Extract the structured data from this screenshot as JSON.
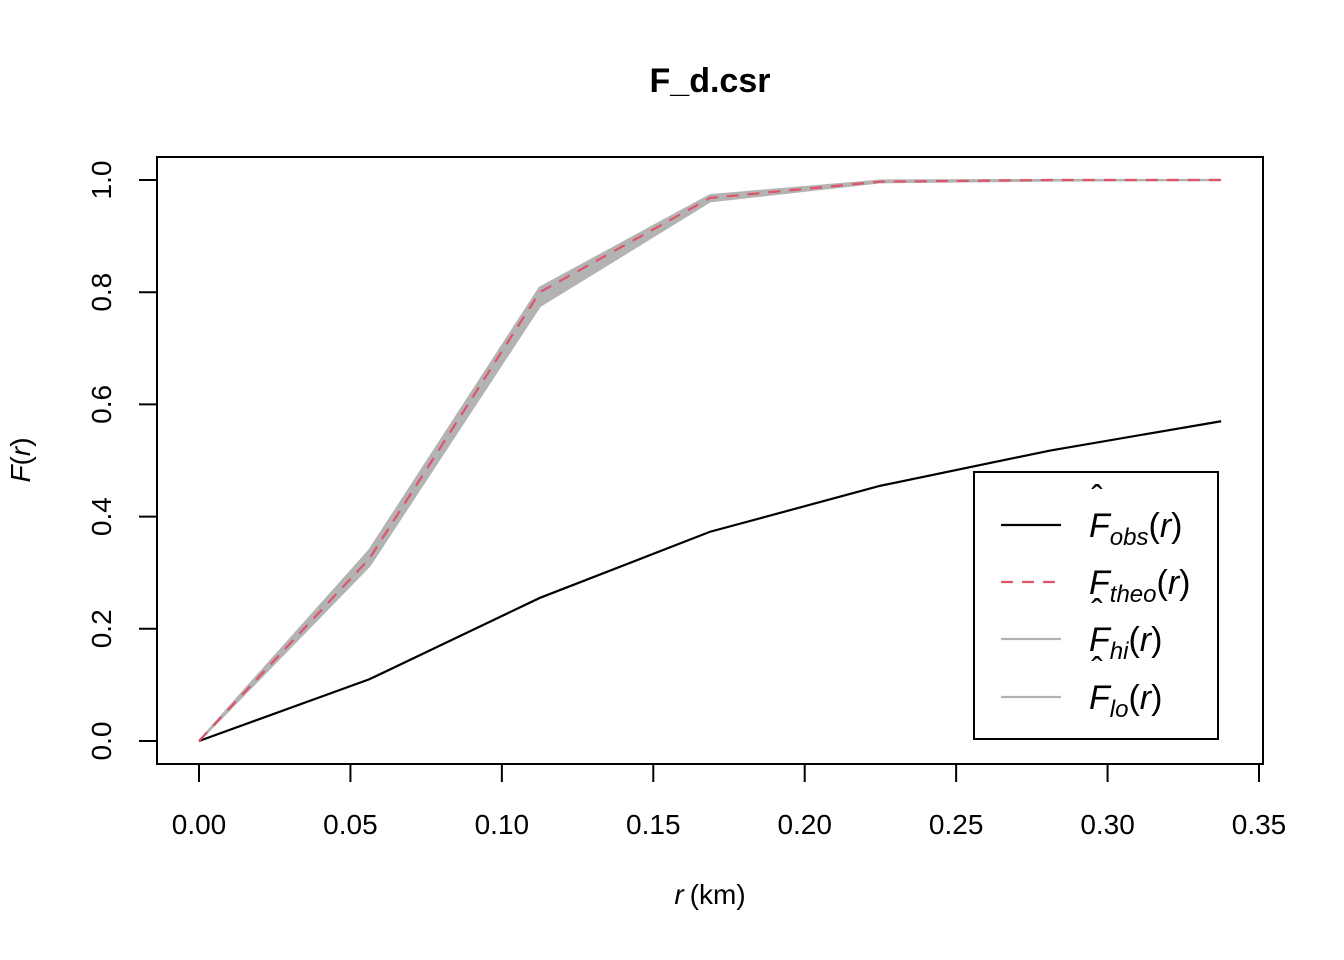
{
  "chart_data": {
    "type": "line",
    "title": "F_d.csr",
    "xlabel": {
      "var": "r",
      "unit": "(km)"
    },
    "ylabel": {
      "base": "F",
      "arg": "r"
    },
    "xlim": [
      0,
      0.35
    ],
    "ylim": [
      0,
      1
    ],
    "x_ticks": [
      "0.00",
      "0.05",
      "0.10",
      "0.15",
      "0.20",
      "0.25",
      "0.30",
      "0.35"
    ],
    "y_ticks": [
      "0.0",
      "0.2",
      "0.4",
      "0.6",
      "0.8",
      "1.0"
    ],
    "grid": false,
    "legend_position": "bottom-right",
    "x": [
      0,
      0.05625,
      0.1125,
      0.16875,
      0.225,
      0.28125,
      0.3375
    ],
    "series": [
      {
        "name": "obs",
        "hat": true,
        "color": "#000000",
        "dash": "solid",
        "values": [
          0,
          0.11,
          0.255,
          0.373,
          0.455,
          0.518,
          0.57
        ]
      },
      {
        "name": "theo",
        "hat": false,
        "color": "#DF536B",
        "dash": "dashed",
        "values": [
          0,
          0.325,
          0.8,
          0.968,
          0.997,
          1.0,
          1.0
        ]
      },
      {
        "name": "hi",
        "hat": true,
        "color": "#B3B3B3",
        "dash": "solid",
        "values": [
          0,
          0.34,
          0.808,
          0.973,
          0.999,
          1.0,
          1.0
        ]
      },
      {
        "name": "lo",
        "hat": true,
        "color": "#B3B3B3",
        "dash": "solid",
        "values": [
          0,
          0.312,
          0.775,
          0.962,
          0.996,
          0.999,
          1.0
        ]
      }
    ],
    "band": {
      "between": [
        "hi",
        "lo"
      ],
      "color": "#B3B3B3"
    }
  }
}
